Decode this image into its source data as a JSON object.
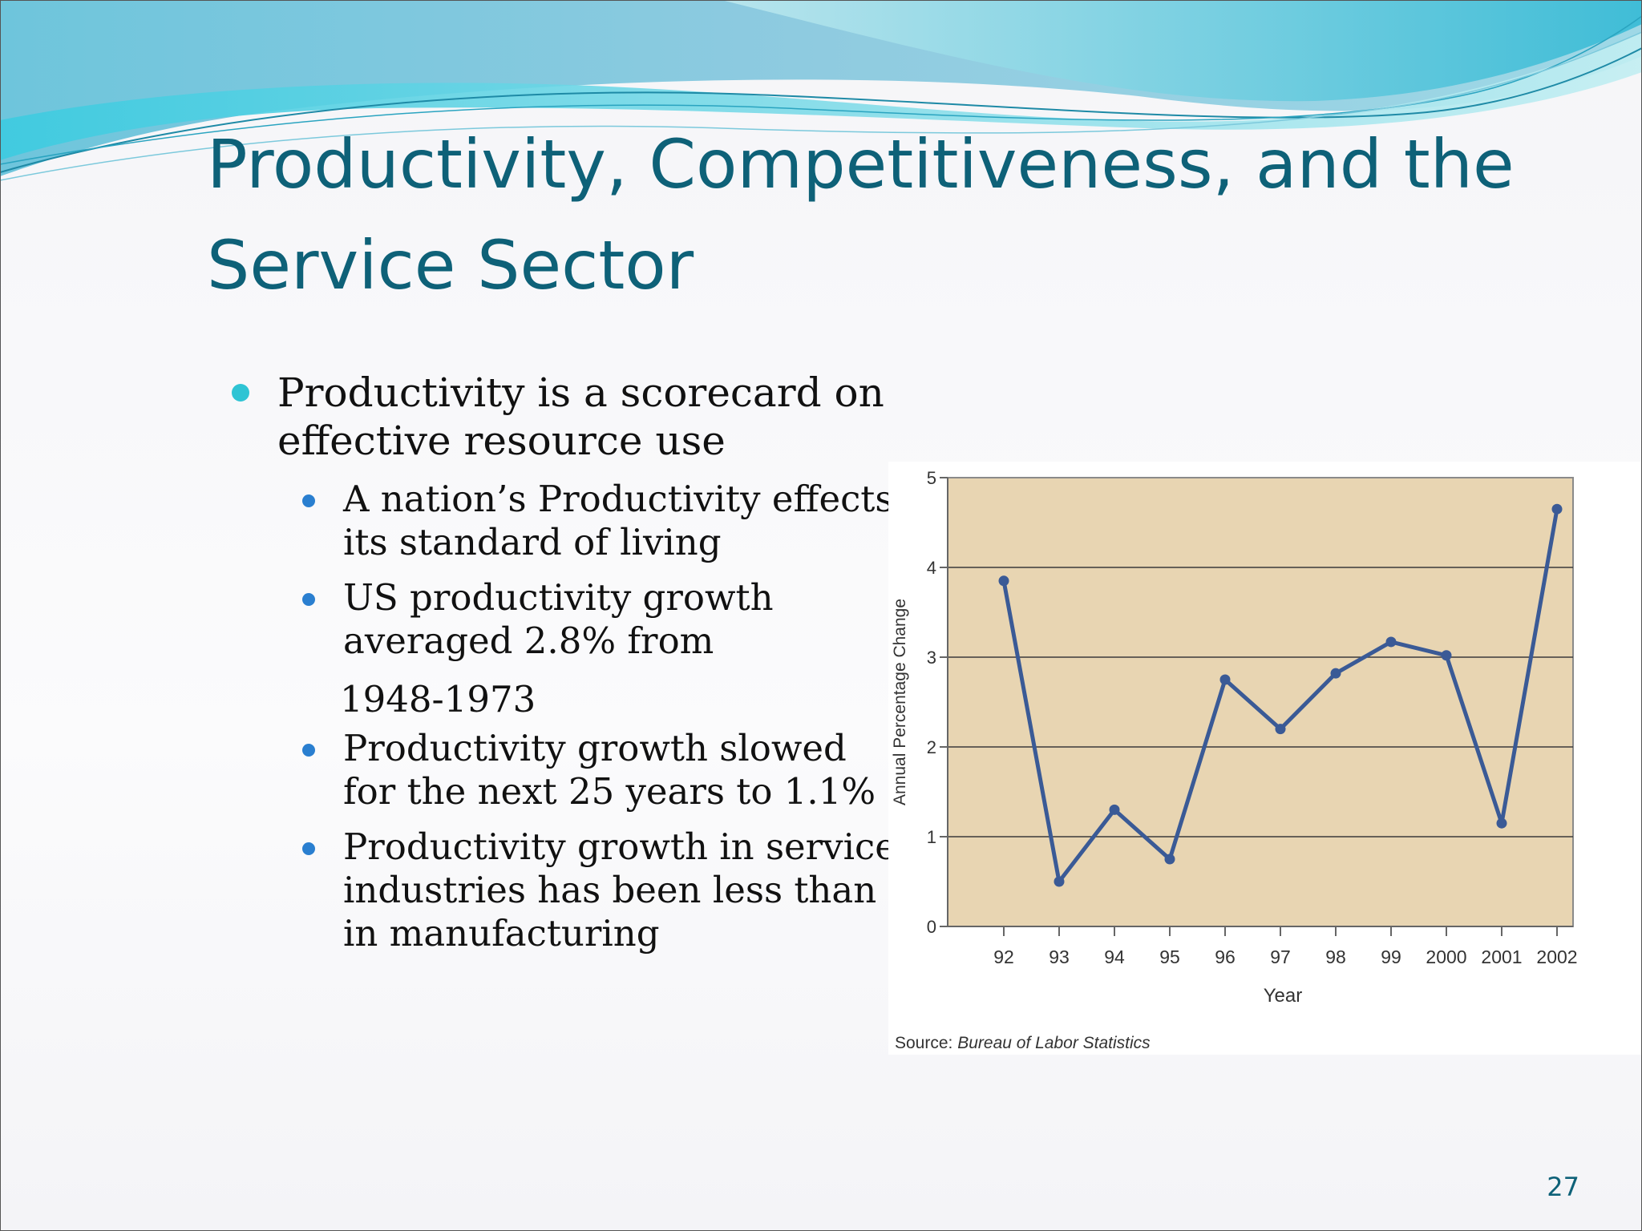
{
  "slide": {
    "title_lines": [
      "Productivity, Competitiveness, and the",
      "Service Sector"
    ],
    "page_number": "27",
    "title_color": "#0e6178",
    "wave_colors": [
      "#8ccde0",
      "#36c6dc",
      "#a8e4ec",
      "#5ab0cf"
    ]
  },
  "bullets": [
    {
      "level": 1,
      "lines": [
        "Productivity is a scorecard on",
        "effective resource use"
      ]
    },
    {
      "level": 2,
      "lines": [
        "A nation’s Productivity effects",
        "its standard of living"
      ]
    },
    {
      "level": 2,
      "lines": [
        "US productivity growth",
        "averaged 2.8% from"
      ]
    },
    {
      "level": 0,
      "lines": [
        "1948-1973"
      ]
    },
    {
      "level": 2,
      "lines": [
        "Productivity growth slowed",
        "for the next 25 years to 1.1%"
      ]
    },
    {
      "level": 2,
      "lines": [
        "Productivity growth in service",
        "industries has been less than",
        "in manufacturing"
      ]
    }
  ],
  "bullet_colors": {
    "level1": "#2fc4d4",
    "level2": "#2a7fd0"
  },
  "chart_data": {
    "type": "line",
    "categories": [
      "92",
      "93",
      "94",
      "95",
      "96",
      "97",
      "98",
      "99",
      "2000",
      "2001",
      "2002"
    ],
    "values": [
      3.85,
      0.5,
      1.3,
      0.75,
      2.75,
      2.2,
      2.82,
      3.17,
      3.02,
      1.15,
      4.65
    ],
    "xlabel": "Year",
    "ylabel": "Annual Percentage Change",
    "ylim": [
      0,
      5
    ],
    "yticks": [
      0,
      1,
      2,
      3,
      4,
      5
    ],
    "grid": true,
    "source_prefix": "Source: ",
    "source_name": "Bureau of Labor Statistics",
    "line_color": "#3a5a96",
    "plot_bg": "#e8d5b2"
  }
}
